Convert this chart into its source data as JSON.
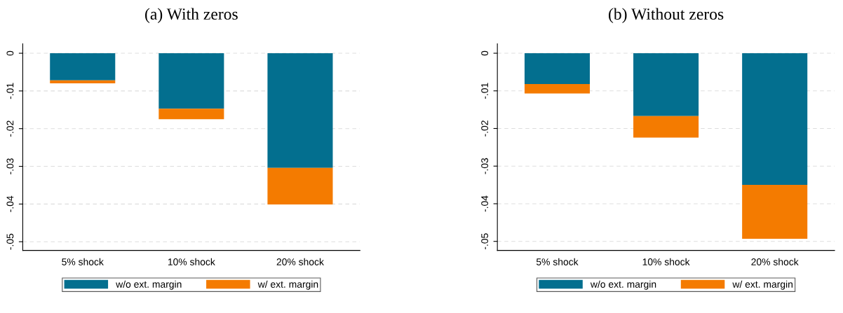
{
  "chart_data": [
    {
      "type": "bar",
      "title": "(a) With zeros",
      "stacked": true,
      "categories": [
        "5% shock",
        "10% shock",
        "20% shock"
      ],
      "series": [
        {
          "name": "w/o ext. margin",
          "color": "#036f8f",
          "values": [
            -0.0072,
            -0.0147,
            -0.0304
          ]
        },
        {
          "name": "w/ ext. margin",
          "color": "#f47b00",
          "values": [
            -0.0008,
            -0.0028,
            -0.0097
          ]
        }
      ],
      "ylim": [
        -0.0523,
        0.0025
      ],
      "yticks": [
        {
          "value": 0,
          "label": "0"
        },
        {
          "value": -0.01,
          "label": "-.01"
        },
        {
          "value": -0.02,
          "label": "-.02"
        },
        {
          "value": -0.03,
          "label": "-.03"
        },
        {
          "value": -0.04,
          "label": "-.04"
        },
        {
          "value": -0.05,
          "label": "-.05"
        }
      ],
      "grid": "y",
      "legend": "bottom"
    },
    {
      "type": "bar",
      "title": "(b) Without zeros",
      "stacked": true,
      "categories": [
        "5% shock",
        "10% shock",
        "20% shock"
      ],
      "series": [
        {
          "name": "w/o ext. margin",
          "color": "#036f8f",
          "values": [
            -0.0082,
            -0.0167,
            -0.035
          ]
        },
        {
          "name": "w/ ext. margin",
          "color": "#f47b00",
          "values": [
            -0.0025,
            -0.0057,
            -0.0143
          ]
        }
      ],
      "ylim": [
        -0.0524,
        0.0025
      ],
      "yticks": [
        {
          "value": 0,
          "label": "0"
        },
        {
          "value": -0.01,
          "label": "-.01"
        },
        {
          "value": -0.02,
          "label": "-.02"
        },
        {
          "value": -0.03,
          "label": "-.03"
        },
        {
          "value": -0.04,
          "label": "-.04"
        },
        {
          "value": -0.05,
          "label": "-.05"
        }
      ],
      "grid": "y",
      "legend": "bottom"
    }
  ]
}
